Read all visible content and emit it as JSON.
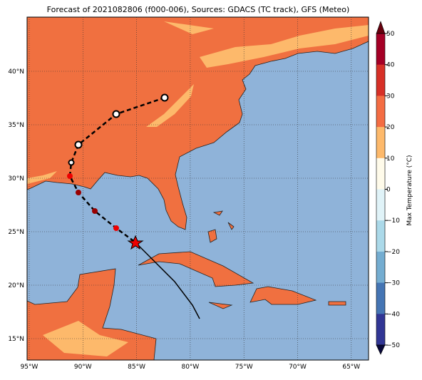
{
  "title": "Forecast of 2021082806 (f000-006), Sources: GDACS (TC track), GFS (Meteo)",
  "lon_labels": [
    "95°W",
    "90°W",
    "85°W",
    "80°W",
    "75°W",
    "70°W",
    "65°W"
  ],
  "lat_labels": [
    "40°N",
    "35°N",
    "30°N",
    "25°N",
    "20°N",
    "15°N"
  ],
  "colorbar": {
    "label": "Max Temperature (°C)",
    "ticks": [
      "50",
      "40",
      "30",
      "20",
      "10",
      "0",
      "−10",
      "−20",
      "−30",
      "−40",
      "−50"
    ],
    "colors": [
      "#a50026",
      "#d73027",
      "#f46d43",
      "#fdb96b",
      "#fffbea",
      "#e0f3f8",
      "#abd9e9",
      "#74add1",
      "#4575b4",
      "#313695"
    ]
  }
}
